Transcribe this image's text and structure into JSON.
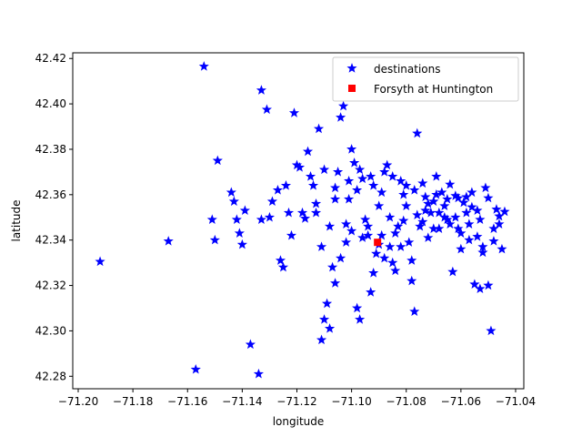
{
  "chart_data": {
    "type": "scatter",
    "xlabel": "longitude",
    "ylabel": "latitude",
    "xlim": [
      -71.202,
      -71.037
    ],
    "ylim": [
      42.2745,
      42.4225
    ],
    "xticks": [
      -71.2,
      -71.18,
      -71.16,
      -71.14,
      -71.12,
      -71.1,
      -71.08,
      -71.06,
      -71.04
    ],
    "xtick_labels": [
      "−71.20",
      "−71.18",
      "−71.16",
      "−71.14",
      "−71.12",
      "−71.10",
      "−71.08",
      "−71.06",
      "−71.04"
    ],
    "yticks": [
      42.28,
      42.3,
      42.32,
      42.34,
      42.36,
      42.38,
      42.4,
      42.42
    ],
    "ytick_labels": [
      "42.28",
      "42.30",
      "42.32",
      "42.34",
      "42.36",
      "42.38",
      "42.40",
      "42.42"
    ],
    "grid": false,
    "legend_position": "top-right",
    "series": [
      {
        "name": "destinations",
        "marker": "star",
        "color": "#0000ff",
        "points": [
          [
            -71.192,
            42.3305
          ],
          [
            -71.167,
            42.3395
          ],
          [
            -71.157,
            42.283
          ],
          [
            -71.154,
            42.4165
          ],
          [
            -71.151,
            42.349
          ],
          [
            -71.15,
            42.34
          ],
          [
            -71.149,
            42.375
          ],
          [
            -71.144,
            42.361
          ],
          [
            -71.143,
            42.357
          ],
          [
            -71.142,
            42.349
          ],
          [
            -71.141,
            42.343
          ],
          [
            -71.14,
            42.338
          ],
          [
            -71.139,
            42.353
          ],
          [
            -71.137,
            42.294
          ],
          [
            -71.134,
            42.281
          ],
          [
            -71.133,
            42.406
          ],
          [
            -71.133,
            42.349
          ],
          [
            -71.131,
            42.3975
          ],
          [
            -71.13,
            42.35
          ],
          [
            -71.129,
            42.357
          ],
          [
            -71.127,
            42.362
          ],
          [
            -71.126,
            42.331
          ],
          [
            -71.125,
            42.328
          ],
          [
            -71.124,
            42.364
          ],
          [
            -71.123,
            42.352
          ],
          [
            -71.122,
            42.342
          ],
          [
            -71.121,
            42.396
          ],
          [
            -71.12,
            42.373
          ],
          [
            -71.119,
            42.372
          ],
          [
            -71.118,
            42.352
          ],
          [
            -71.117,
            42.3495
          ],
          [
            -71.116,
            42.379
          ],
          [
            -71.115,
            42.368
          ],
          [
            -71.114,
            42.364
          ],
          [
            -71.113,
            42.352
          ],
          [
            -71.112,
            42.389
          ],
          [
            -71.111,
            42.296
          ],
          [
            -71.11,
            42.305
          ],
          [
            -71.109,
            42.312
          ],
          [
            -71.108,
            42.301
          ],
          [
            -71.107,
            42.328
          ],
          [
            -71.106,
            42.321
          ],
          [
            -71.105,
            42.37
          ],
          [
            -71.104,
            42.394
          ],
          [
            -71.103,
            42.399
          ],
          [
            -71.102,
            42.347
          ],
          [
            -71.101,
            42.358
          ],
          [
            -71.1,
            42.38
          ],
          [
            -71.099,
            42.374
          ],
          [
            -71.098,
            42.31
          ],
          [
            -71.097,
            42.305
          ],
          [
            -71.096,
            42.367
          ],
          [
            -71.095,
            42.349
          ],
          [
            -71.094,
            42.342
          ],
          [
            -71.093,
            42.317
          ],
          [
            -71.092,
            42.3255
          ],
          [
            -71.091,
            42.334
          ],
          [
            -71.09,
            42.355
          ],
          [
            -71.089,
            42.361
          ],
          [
            -71.088,
            42.37
          ],
          [
            -71.087,
            42.373
          ],
          [
            -71.086,
            42.337
          ],
          [
            -71.085,
            42.33
          ],
          [
            -71.084,
            42.3265
          ],
          [
            -71.083,
            42.346
          ],
          [
            -71.082,
            42.366
          ],
          [
            -71.081,
            42.3485
          ],
          [
            -71.08,
            42.364
          ],
          [
            -71.079,
            42.339
          ],
          [
            -71.078,
            42.322
          ],
          [
            -71.077,
            42.3085
          ],
          [
            -71.076,
            42.387
          ],
          [
            -71.075,
            42.346
          ],
          [
            -71.074,
            42.365
          ],
          [
            -71.073,
            42.359
          ],
          [
            -71.072,
            42.356
          ],
          [
            -71.071,
            42.352
          ],
          [
            -71.07,
            42.345
          ],
          [
            -71.069,
            42.368
          ],
          [
            -71.068,
            42.352
          ],
          [
            -71.067,
            42.361
          ],
          [
            -71.066,
            42.355
          ],
          [
            -71.065,
            42.349
          ],
          [
            -71.064,
            42.3645
          ],
          [
            -71.063,
            42.326
          ],
          [
            -71.062,
            42.3595
          ],
          [
            -71.061,
            42.3585
          ],
          [
            -71.06,
            42.343
          ],
          [
            -71.059,
            42.3565
          ],
          [
            -71.058,
            42.352
          ],
          [
            -71.057,
            42.34
          ],
          [
            -71.056,
            42.3545
          ],
          [
            -71.055,
            42.3205
          ],
          [
            -71.054,
            42.3415
          ],
          [
            -71.053,
            42.3185
          ],
          [
            -71.052,
            42.3345
          ],
          [
            -71.051,
            42.363
          ],
          [
            -71.05,
            42.3585
          ],
          [
            -71.049,
            42.3
          ],
          [
            -71.048,
            42.3395
          ],
          [
            -71.047,
            42.3535
          ],
          [
            -71.046,
            42.3505
          ],
          [
            -71.045,
            42.336
          ],
          [
            -71.044,
            42.3525
          ],
          [
            -71.113,
            42.356
          ],
          [
            -71.111,
            42.337
          ],
          [
            -71.108,
            42.346
          ],
          [
            -71.106,
            42.358
          ],
          [
            -71.104,
            42.332
          ],
          [
            -71.102,
            42.339
          ],
          [
            -71.1,
            42.344
          ],
          [
            -71.098,
            42.362
          ],
          [
            -71.096,
            42.341
          ],
          [
            -71.094,
            42.346
          ],
          [
            -71.092,
            42.364
          ],
          [
            -71.09,
            42.338
          ],
          [
            -71.088,
            42.332
          ],
          [
            -71.086,
            42.35
          ],
          [
            -71.084,
            42.343
          ],
          [
            -71.082,
            42.337
          ],
          [
            -71.08,
            42.355
          ],
          [
            -71.078,
            42.331
          ],
          [
            -71.076,
            42.351
          ],
          [
            -71.074,
            42.348
          ],
          [
            -71.072,
            42.341
          ],
          [
            -71.07,
            42.357
          ],
          [
            -71.068,
            42.345
          ],
          [
            -71.066,
            42.35
          ],
          [
            -71.064,
            42.347
          ],
          [
            -71.062,
            42.35
          ],
          [
            -71.06,
            42.336
          ],
          [
            -71.058,
            42.359
          ],
          [
            -71.056,
            42.361
          ],
          [
            -71.054,
            42.353
          ],
          [
            -71.052,
            42.337
          ],
          [
            -71.05,
            42.32
          ],
          [
            -71.048,
            42.345
          ],
          [
            -71.046,
            42.347
          ],
          [
            -71.11,
            42.371
          ],
          [
            -71.106,
            42.363
          ],
          [
            -71.101,
            42.366
          ],
          [
            -71.097,
            42.371
          ],
          [
            -71.093,
            42.368
          ],
          [
            -71.089,
            42.342
          ],
          [
            -71.085,
            42.368
          ],
          [
            -71.081,
            42.36
          ],
          [
            -71.077,
            42.362
          ],
          [
            -71.073,
            42.353
          ],
          [
            -71.069,
            42.36
          ],
          [
            -71.065,
            42.358
          ],
          [
            -71.061,
            42.345
          ],
          [
            -71.057,
            42.347
          ],
          [
            -71.053,
            42.349
          ]
        ]
      },
      {
        "name": "Forsyth at Huntington",
        "marker": "square",
        "color": "#ff0000",
        "points": [
          [
            -71.0905,
            42.339
          ]
        ]
      }
    ]
  }
}
